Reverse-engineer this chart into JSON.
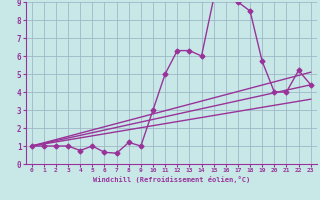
{
  "xlabel": "Windchill (Refroidissement éolien,°C)",
  "xlim": [
    -0.5,
    23.5
  ],
  "ylim": [
    0,
    9
  ],
  "xticks": [
    0,
    1,
    2,
    3,
    4,
    5,
    6,
    7,
    8,
    9,
    10,
    11,
    12,
    13,
    14,
    15,
    16,
    17,
    18,
    19,
    20,
    21,
    22,
    23
  ],
  "yticks": [
    0,
    1,
    2,
    3,
    4,
    5,
    6,
    7,
    8,
    9
  ],
  "background_color": "#c8e8e8",
  "grid_color": "#a0b8c8",
  "line_color": "#993399",
  "line1_x": [
    0,
    1,
    2,
    3,
    4,
    5,
    6,
    7,
    8,
    9,
    10,
    11,
    12,
    13,
    14,
    15,
    16,
    17,
    18,
    19,
    20,
    21,
    22,
    23
  ],
  "line1_y": [
    1.0,
    1.0,
    1.0,
    1.0,
    0.75,
    1.0,
    0.65,
    0.6,
    1.2,
    1.0,
    3.0,
    5.0,
    6.3,
    6.3,
    6.0,
    9.2,
    9.3,
    9.0,
    8.5,
    5.7,
    4.0,
    4.0,
    5.2,
    4.4
  ],
  "line2_x": [
    0,
    23
  ],
  "line2_y": [
    1.0,
    4.4
  ],
  "line3_x": [
    0,
    23
  ],
  "line3_y": [
    1.0,
    5.1
  ],
  "line4_x": [
    0,
    23
  ],
  "line4_y": [
    1.0,
    3.6
  ],
  "marker": "D",
  "markersize": 2.5,
  "linewidth": 1.0
}
